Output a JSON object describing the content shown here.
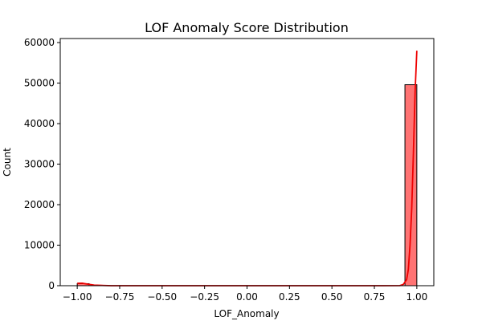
{
  "chart_data": {
    "type": "bar",
    "subtype": "histogram_with_kde",
    "title": "LOF Anomaly Score Distribution",
    "xlabel": "LOF_Anomaly",
    "ylabel": "Count",
    "xlim": [
      -1.1,
      1.1
    ],
    "ylim": [
      0,
      61000
    ],
    "x_ticks": [
      -1.0,
      -0.75,
      -0.5,
      -0.25,
      0.0,
      0.25,
      0.5,
      0.75,
      1.0
    ],
    "x_tick_labels": [
      "−1.00",
      "−0.75",
      "−0.50",
      "−0.25",
      "0.00",
      "0.25",
      "0.50",
      "0.75",
      "1.00"
    ],
    "y_ticks": [
      0,
      10000,
      20000,
      30000,
      40000,
      50000,
      60000
    ],
    "y_tick_labels": [
      "0",
      "10000",
      "20000",
      "30000",
      "40000",
      "50000",
      "60000"
    ],
    "bins": [
      {
        "x0": -1.0,
        "x1": -0.93,
        "count": 500
      },
      {
        "x0": 0.93,
        "x1": 1.0,
        "count": 49600
      }
    ],
    "kde": {
      "x": [
        -1.0,
        -0.97,
        -0.94,
        -0.9,
        -0.8,
        0.0,
        0.8,
        0.9,
        0.92,
        0.94,
        0.95,
        0.96,
        0.97,
        0.98,
        0.99,
        1.0
      ],
      "y": [
        600,
        620,
        400,
        150,
        0,
        0,
        0,
        20,
        300,
        1500,
        4000,
        10000,
        19000,
        33000,
        48000,
        58000
      ]
    },
    "colors": {
      "bar_fill": "#ff7373",
      "bar_edge": "#000000",
      "kde_line": "#ee0000"
    },
    "grid": false,
    "legend": "none"
  }
}
